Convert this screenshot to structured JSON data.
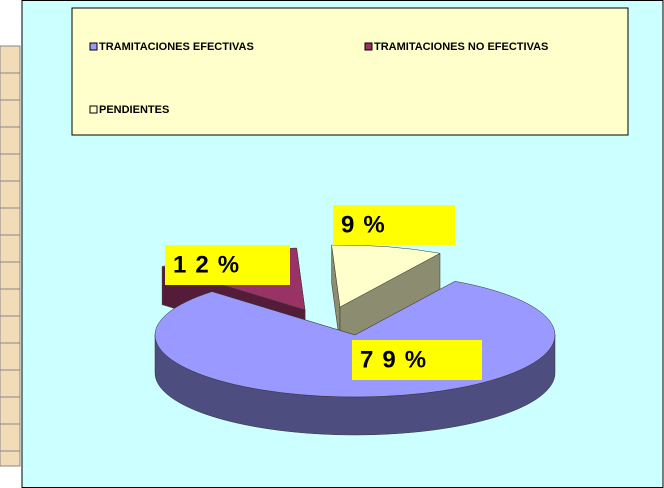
{
  "chart_data": {
    "type": "pie3d",
    "categories": [
      "TRAMITACIONES EFECTIVAS",
      "TRAMITACIONES NO EFECTIVAS",
      "PENDIENTES"
    ],
    "values": [
      79,
      12,
      9
    ],
    "value_labels": [
      "79%",
      "12%",
      "9%"
    ],
    "colors": [
      "#9999ff",
      "#993366",
      "#ffffcc"
    ],
    "legend": "top"
  }
}
